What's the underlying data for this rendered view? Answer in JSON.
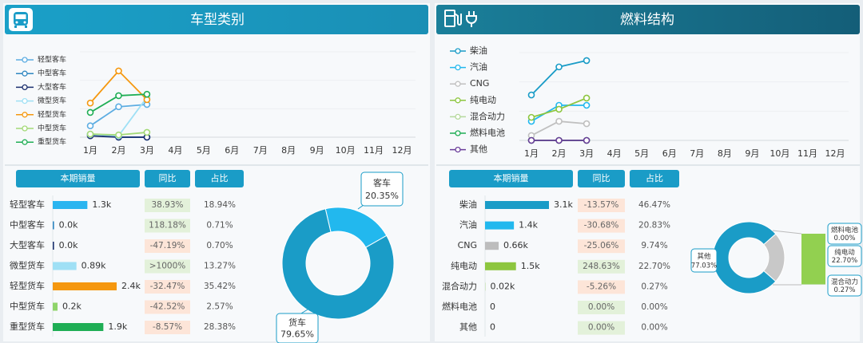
{
  "panels": [
    {
      "title": "车型类别",
      "table": {
        "headers": [
          "本期销量",
          "同比",
          "占比"
        ],
        "rows": [
          {
            "name": "轻型客车",
            "sales": 1300,
            "sales_label": "1.3k",
            "yoy": "38.93%",
            "share": "18.94%",
            "color": "#2bb5f0"
          },
          {
            "name": "中型客车",
            "sales": 49,
            "sales_label": "0.0k",
            "yoy": "118.18%",
            "share": "0.71%",
            "color": "#2e86c1"
          },
          {
            "name": "大型客车",
            "sales": 48,
            "sales_label": "0.0k",
            "yoy": "-47.19%",
            "share": "0.70%",
            "color": "#1b2f6e"
          },
          {
            "name": "微型货车",
            "sales": 890,
            "sales_label": "0.89k",
            "yoy": ">1000%",
            "share": "13.27%",
            "color": "#9fe0f5"
          },
          {
            "name": "轻型货车",
            "sales": 2400,
            "sales_label": "2.4k",
            "yoy": "-32.47%",
            "share": "35.42%",
            "color": "#f5980f"
          },
          {
            "name": "中型货车",
            "sales": 180,
            "sales_label": "0.2k",
            "yoy": "-42.52%",
            "share": "2.57%",
            "color": "#8fd46a"
          },
          {
            "name": "重型货车",
            "sales": 1900,
            "sales_label": "1.9k",
            "yoy": "-8.57%",
            "share": "28.38%",
            "color": "#1fae55"
          }
        ]
      }
    },
    {
      "title": "燃料结构",
      "table": {
        "headers": [
          "本期销量",
          "同比",
          "占比"
        ],
        "rows": [
          {
            "name": "柴油",
            "sales": 3100,
            "sales_label": "3.1k",
            "yoy": "-13.57%",
            "share": "46.47%",
            "color": "#1a9cc7"
          },
          {
            "name": "汽油",
            "sales": 1400,
            "sales_label": "1.4k",
            "yoy": "-30.68%",
            "share": "20.83%",
            "color": "#22b8ee"
          },
          {
            "name": "CNG",
            "sales": 660,
            "sales_label": "0.66k",
            "yoy": "-25.06%",
            "share": "9.74%",
            "color": "#bdbdbd"
          },
          {
            "name": "纯电动",
            "sales": 1500,
            "sales_label": "1.5k",
            "yoy": "248.63%",
            "share": "22.70%",
            "color": "#8dc63f"
          },
          {
            "name": "混合动力",
            "sales": 20,
            "sales_label": "0.02k",
            "yoy": "-5.26%",
            "share": "0.27%",
            "color": "#b5d99c"
          },
          {
            "name": "燃料电池",
            "sales": 0,
            "sales_label": "0",
            "yoy": "0.00%",
            "share": "0.00%",
            "color": "#1fae55"
          },
          {
            "name": "其他",
            "sales": 0,
            "sales_label": "0",
            "yoy": "0.00%",
            "share": "0.00%",
            "color": "#6a3d9a"
          }
        ]
      }
    }
  ],
  "chart_data": [
    {
      "type": "line",
      "categories": [
        "1月",
        "2月",
        "3月",
        "4月",
        "5月",
        "6月",
        "7月",
        "8月",
        "9月",
        "10月",
        "11月",
        "12月"
      ],
      "ylim": [
        0,
        3000
      ],
      "grid": true,
      "series": [
        {
          "name": "轻型客车",
          "color": "#5dade2",
          "values": [
            400,
            1070,
            1150,
            null,
            null,
            null,
            null,
            null,
            null,
            null,
            null,
            null
          ]
        },
        {
          "name": "中型客车",
          "color": "#2e86c1",
          "values": [
            100,
            0,
            0,
            null,
            null,
            null,
            null,
            null,
            null,
            null,
            null,
            null
          ]
        },
        {
          "name": "大型客车",
          "color": "#1b2f6e",
          "values": [
            50,
            0,
            0,
            null,
            null,
            null,
            null,
            null,
            null,
            null,
            null,
            null
          ]
        },
        {
          "name": "微型货车",
          "color": "#9fe0f5",
          "values": [
            100,
            50,
            1400,
            null,
            null,
            null,
            null,
            null,
            null,
            null,
            null,
            null
          ]
        },
        {
          "name": "轻型货车",
          "color": "#f5980f",
          "values": [
            1200,
            2330,
            1320,
            null,
            null,
            null,
            null,
            null,
            null,
            null,
            null,
            null
          ]
        },
        {
          "name": "中型货车",
          "color": "#a3d977",
          "values": [
            110,
            80,
            170,
            null,
            null,
            null,
            null,
            null,
            null,
            null,
            null,
            null
          ]
        },
        {
          "name": "重型货车",
          "color": "#1fae55",
          "values": [
            870,
            1460,
            1510,
            null,
            null,
            null,
            null,
            null,
            null,
            null,
            null,
            null
          ]
        }
      ]
    },
    {
      "type": "pie",
      "donut": true,
      "categories": [
        "客车",
        "货车"
      ],
      "values": [
        20.35,
        79.65
      ],
      "value_labels": [
        "20.35%",
        "79.65%"
      ],
      "colors": [
        "#22b8ee",
        "#1a9cc7"
      ]
    },
    {
      "type": "line",
      "categories": [
        "1月",
        "2月",
        "3月",
        "4月",
        "5月",
        "6月",
        "7月",
        "8月",
        "9月",
        "10月",
        "11月",
        "12月"
      ],
      "ylim": [
        0,
        4000
      ],
      "grid": true,
      "series": [
        {
          "name": "柴油",
          "color": "#1a9cc7",
          "values": [
            2070,
            3350,
            3640,
            null,
            null,
            null,
            null,
            null,
            null,
            null,
            null,
            null
          ]
        },
        {
          "name": "汽油",
          "color": "#22b8ee",
          "values": [
            870,
            1600,
            1600,
            null,
            null,
            null,
            null,
            null,
            null,
            null,
            null,
            null
          ]
        },
        {
          "name": "CNG",
          "color": "#c0c0c0",
          "values": [
            220,
            870,
            760,
            null,
            null,
            null,
            null,
            null,
            null,
            null,
            null,
            null
          ]
        },
        {
          "name": "纯电动",
          "color": "#8dc63f",
          "values": [
            1050,
            1420,
            1930,
            null,
            null,
            null,
            null,
            null,
            null,
            null,
            null,
            null
          ]
        },
        {
          "name": "混合动力",
          "color": "#b5d99c",
          "values": [
            0,
            0,
            0,
            null,
            null,
            null,
            null,
            null,
            null,
            null,
            null,
            null
          ]
        },
        {
          "name": "燃料电池",
          "color": "#1fae55",
          "values": [
            0,
            0,
            0,
            null,
            null,
            null,
            null,
            null,
            null,
            null,
            null,
            null
          ]
        },
        {
          "name": "其他",
          "color": "#6a3d9a",
          "values": [
            0,
            0,
            0,
            null,
            null,
            null,
            null,
            null,
            null,
            null,
            null,
            null
          ]
        }
      ]
    },
    {
      "type": "pie",
      "donut": true,
      "categories": [
        "其他"
      ],
      "values": [
        77.03
      ],
      "value_labels": [
        "77.03%"
      ],
      "colors": [
        "#1a9cc7"
      ],
      "breakout": {
        "group_color": "#c8c8c8",
        "categories": [
          "燃料电池",
          "纯电动",
          "混合动力"
        ],
        "values": [
          0,
          22.7,
          0.27
        ],
        "value_labels": [
          "0.00%",
          "22.70%",
          "0.27%"
        ],
        "colors": [
          "#1fae55",
          "#92d050",
          "#b5d99c"
        ]
      }
    }
  ]
}
